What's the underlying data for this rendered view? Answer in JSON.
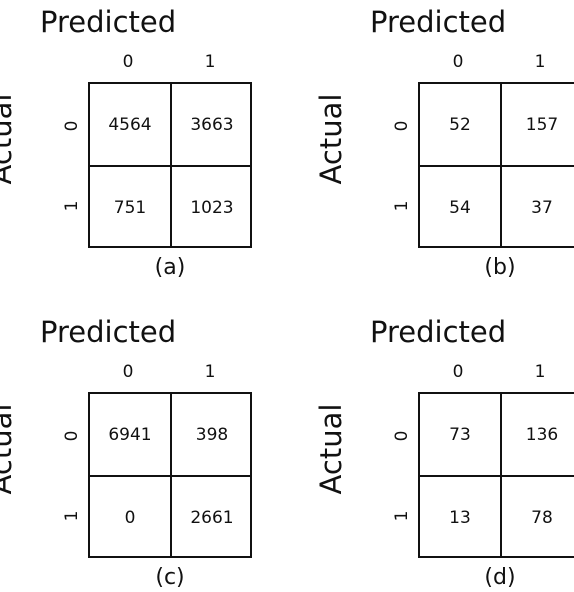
{
  "title": "Predicted",
  "y_label": "Actual",
  "class_labels": [
    "0",
    "1"
  ],
  "matrices": [
    {
      "caption": "(a)",
      "cells": [
        [
          "4564",
          "3663"
        ],
        [
          "751",
          "1023"
        ]
      ]
    },
    {
      "caption": "(b)",
      "cells": [
        [
          "52",
          "157"
        ],
        [
          "54",
          "37"
        ]
      ]
    },
    {
      "caption": "(c)",
      "cells": [
        [
          "6941",
          "398"
        ],
        [
          "0",
          "2661"
        ]
      ]
    },
    {
      "caption": "(d)",
      "cells": [
        [
          "73",
          "136"
        ],
        [
          "13",
          "78"
        ]
      ]
    }
  ]
}
